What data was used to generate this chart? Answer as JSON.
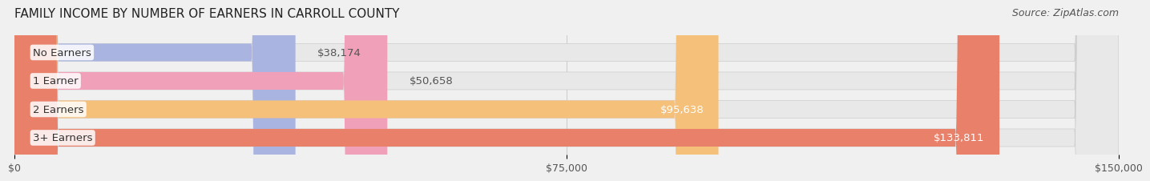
{
  "title": "FAMILY INCOME BY NUMBER OF EARNERS IN CARROLL COUNTY",
  "source": "Source: ZipAtlas.com",
  "categories": [
    "No Earners",
    "1 Earner",
    "2 Earners",
    "3+ Earners"
  ],
  "values": [
    38174,
    50658,
    95638,
    133811
  ],
  "bar_colors": [
    "#aab4e0",
    "#f0a0b8",
    "#f5c07a",
    "#e8806a"
  ],
  "bar_edge_colors": [
    "#8890c8",
    "#e070a0",
    "#e0a050",
    "#d86050"
  ],
  "label_colors": [
    "#555555",
    "#555555",
    "#ffffff",
    "#ffffff"
  ],
  "value_labels": [
    "$38,174",
    "$50,658",
    "$95,638",
    "$133,811"
  ],
  "xlim": [
    0,
    150000
  ],
  "xticks": [
    0,
    75000,
    150000
  ],
  "xticklabels": [
    "$0",
    "$75,000",
    "$150,000"
  ],
  "background_color": "#f0f0f0",
  "bar_background_color": "#e8e8e8",
  "title_fontsize": 11,
  "source_fontsize": 9,
  "label_fontsize": 9.5,
  "value_fontsize": 9.5,
  "tick_fontsize": 9,
  "bar_height": 0.62,
  "bar_label_padding": 8000
}
